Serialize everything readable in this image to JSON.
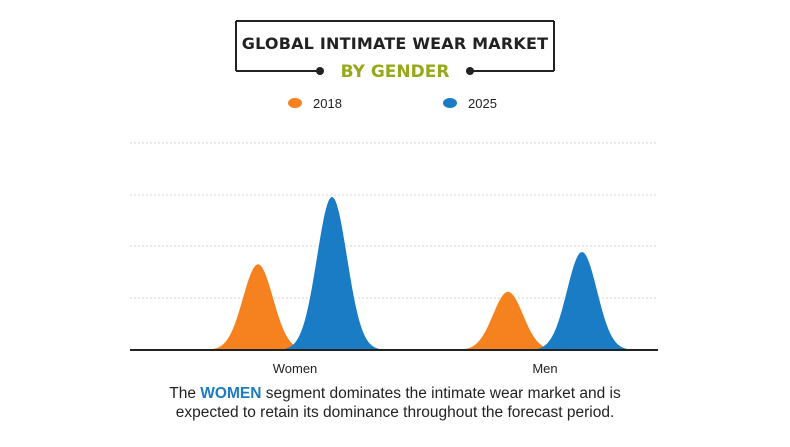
{
  "chart_data": {
    "type": "area",
    "title": "GLOBAL INTIMATE WEAR MARKET",
    "subtitle": "BY GENDER",
    "categories": [
      "Women",
      "Men"
    ],
    "series": [
      {
        "name": "2018",
        "color": "#f5821f",
        "values": [
          0.56,
          0.38
        ]
      },
      {
        "name": "2025",
        "color": "#1a7cc4",
        "values": [
          1.0,
          0.64
        ]
      }
    ],
    "legend_position": "top",
    "grid": true,
    "xlabel": "",
    "ylabel": ""
  },
  "caption": {
    "before": "The ",
    "highlight": "WOMEN",
    "after": " segment dominates the intimate wear market and is",
    "line2": "expected to retain its dominance throughout the forecast period."
  },
  "colors": {
    "title": "#222222",
    "subtitle": "#97a81a",
    "grid": "#d3d3d3",
    "axis": "#222222"
  }
}
